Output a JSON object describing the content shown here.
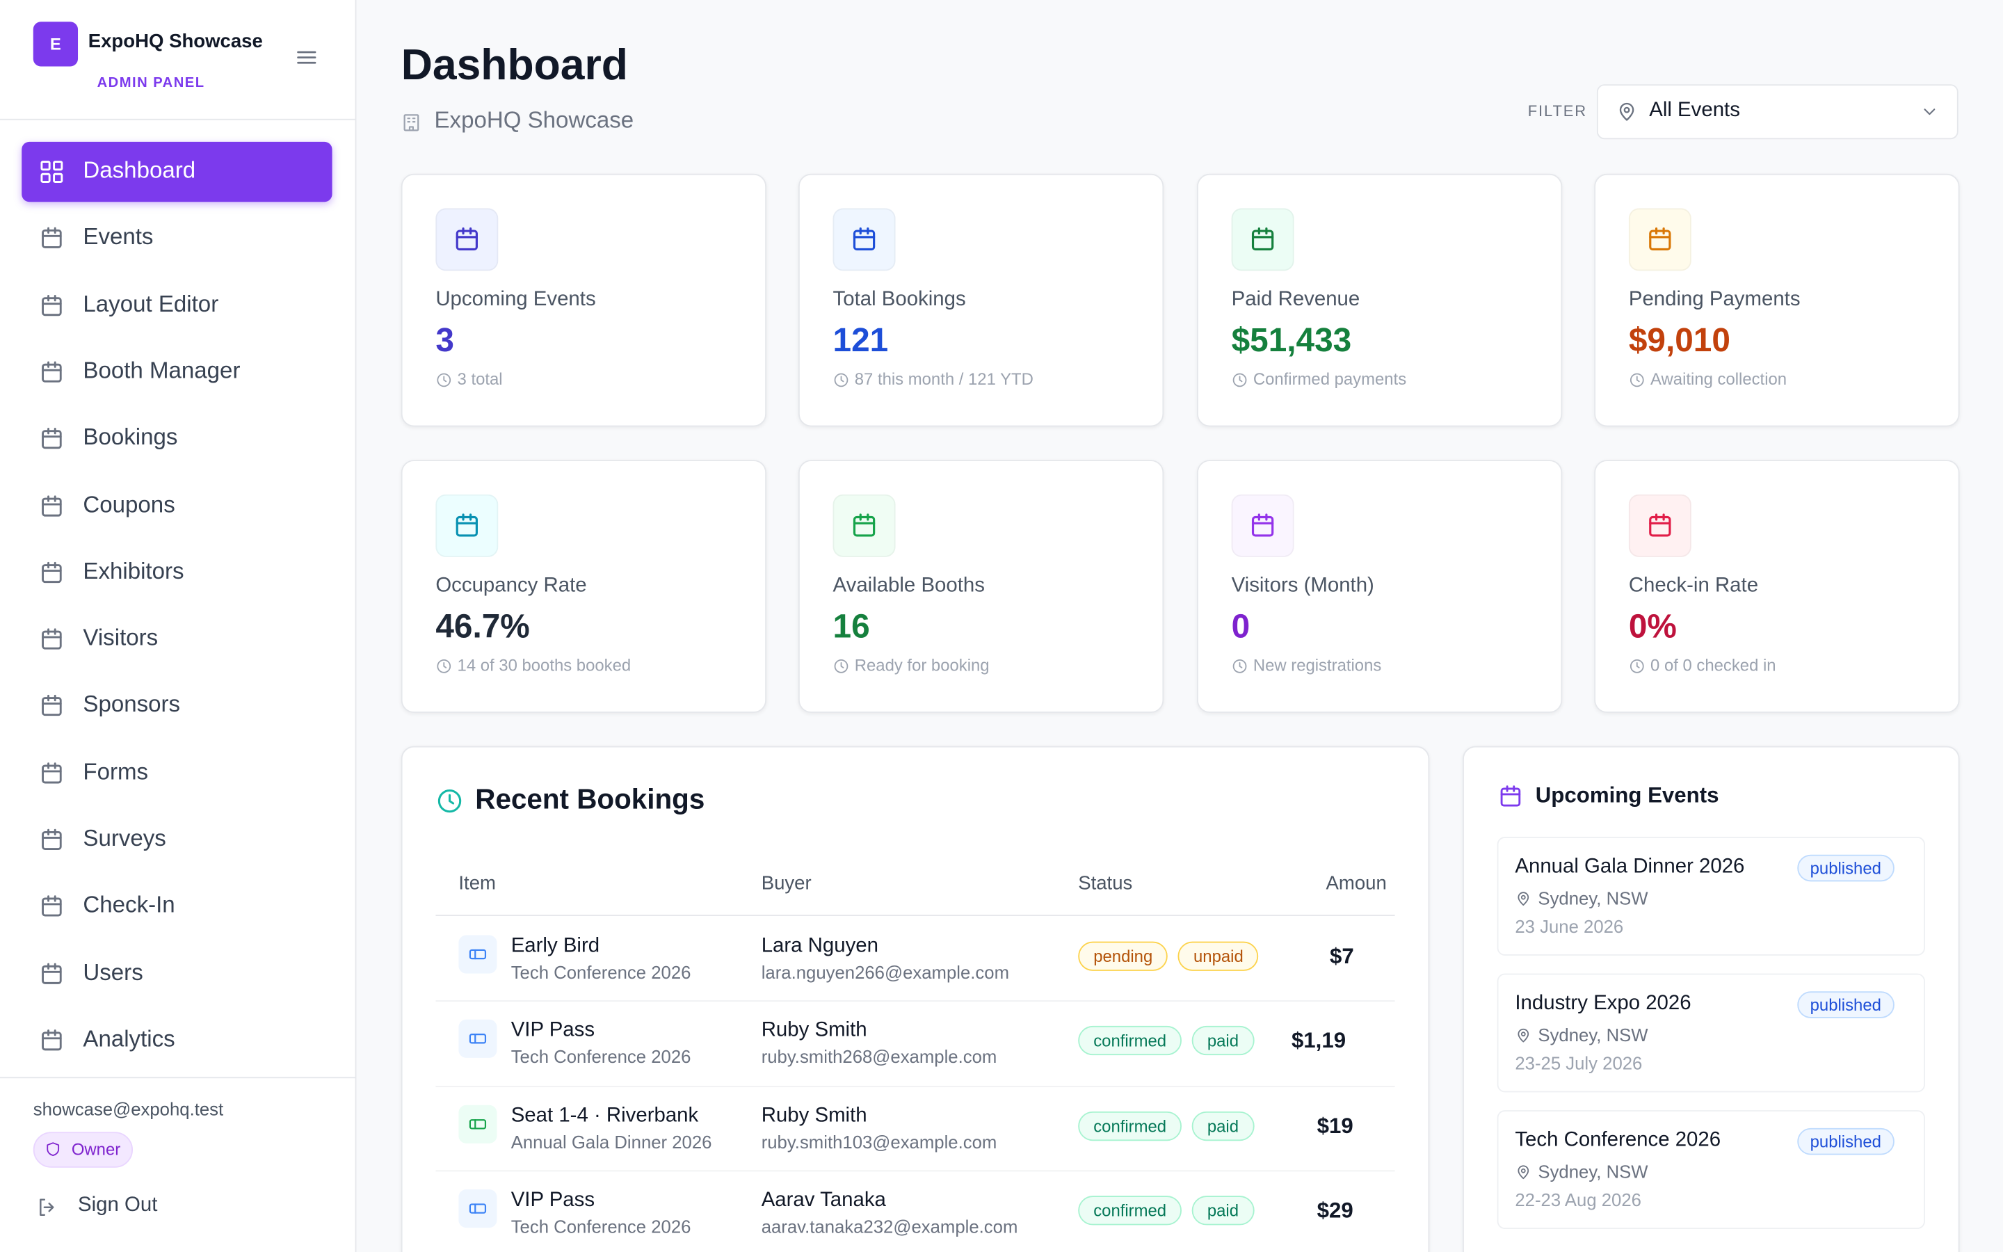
{
  "sidebar": {
    "logo": "E",
    "brand": "ExpoHQ Showcase",
    "subtitle": "ADMIN PANEL",
    "nav": [
      "Dashboard",
      "Events",
      "Layout Editor",
      "Booth Manager",
      "Bookings",
      "Coupons",
      "Exhibitors",
      "Visitors",
      "Sponsors",
      "Forms",
      "Surveys",
      "Check-In",
      "Users",
      "Analytics"
    ],
    "email": "showcase@expohq.test",
    "role": "Owner",
    "sign_out": "Sign Out"
  },
  "header": {
    "title": "Dashboard",
    "subtitle": "ExpoHQ Showcase",
    "filter_label": "FILTER",
    "filter_value": "All Events"
  },
  "stats": [
    {
      "label": "Upcoming Events",
      "value": "3",
      "note": "3 total"
    },
    {
      "label": "Total Bookings",
      "value": "121",
      "note": "87 this month / 121 YTD"
    },
    {
      "label": "Paid Revenue",
      "value": "$51,433",
      "note": "Confirmed payments"
    },
    {
      "label": "Pending Payments",
      "value": "$9,010",
      "note": "Awaiting collection"
    },
    {
      "label": "Occupancy Rate",
      "value": "46.7%",
      "note": "14 of 30 booths booked"
    },
    {
      "label": "Available Booths",
      "value": "16",
      "note": "Ready for booking"
    },
    {
      "label": "Visitors (Month)",
      "value": "0",
      "note": "New registrations"
    },
    {
      "label": "Check-in Rate",
      "value": "0%",
      "note": "0 of 0 checked in"
    }
  ],
  "recent_bookings": {
    "title": "Recent Bookings",
    "columns": [
      "Item",
      "Buyer",
      "Status",
      "Amoun"
    ],
    "rows": [
      {
        "item": "Early Bird",
        "event": "Tech Conference 2026",
        "buyer": "Lara Nguyen",
        "email": "lara.nguyen266@example.com",
        "status": [
          "pending",
          "unpaid"
        ],
        "amount": "$7"
      },
      {
        "item": "VIP Pass",
        "event": "Tech Conference 2026",
        "buyer": "Ruby Smith",
        "email": "ruby.smith268@example.com",
        "status": [
          "confirmed",
          "paid"
        ],
        "amount": "$1,19"
      },
      {
        "item": "Seat 1-4 · Riverbank",
        "event": "Annual Gala Dinner 2026",
        "buyer": "Ruby Smith",
        "email": "ruby.smith103@example.com",
        "status": [
          "confirmed",
          "paid"
        ],
        "amount": "$19"
      },
      {
        "item": "VIP Pass",
        "event": "Tech Conference 2026",
        "buyer": "Aarav Tanaka",
        "email": "aarav.tanaka232@example.com",
        "status": [
          "confirmed",
          "paid"
        ],
        "amount": "$29"
      }
    ]
  },
  "upcoming_events": {
    "title": "Upcoming Events",
    "events": [
      {
        "name": "Annual Gala Dinner 2026",
        "status": "published",
        "location": "Sydney, NSW",
        "date": "23 June 2026"
      },
      {
        "name": "Industry Expo 2026",
        "status": "published",
        "location": "Sydney, NSW",
        "date": "23-25 July 2026"
      },
      {
        "name": "Tech Conference 2026",
        "status": "published",
        "location": "Sydney, NSW",
        "date": "22-23 Aug 2026"
      }
    ]
  }
}
